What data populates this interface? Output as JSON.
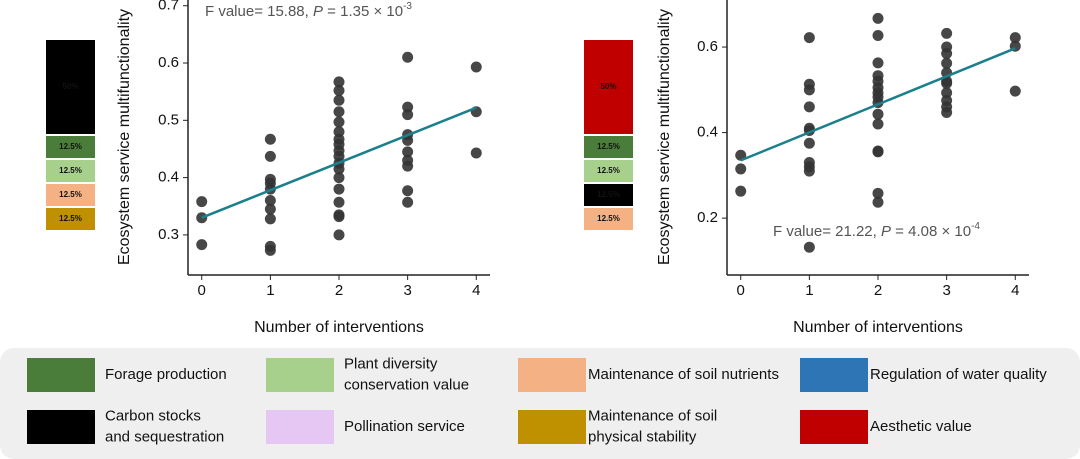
{
  "chart_data": [
    {
      "type": "scatter",
      "color": "#333333",
      "xlabel": "Number of interventions",
      "ylabel": "Ecosystem service multifunctionality",
      "xlim": [
        -0.2,
        4.2
      ],
      "ylim": [
        0.23,
        0.71
      ],
      "xticks": [
        0,
        1,
        2,
        3,
        4
      ],
      "yticks": [
        0.3,
        0.4,
        0.5,
        0.6,
        0.7
      ],
      "annotation": [
        "F value= 15.88, ",
        "P",
        " = 1.35 × 10",
        "-3"
      ],
      "x": [
        0,
        0,
        0,
        1,
        1,
        1,
        1,
        1,
        1,
        1,
        1,
        1,
        1,
        2,
        2,
        2,
        2,
        2,
        2,
        2,
        2,
        2,
        2,
        2,
        2,
        2,
        2,
        2,
        2,
        2,
        2,
        3,
        3,
        3,
        3,
        3,
        3,
        3,
        3,
        3,
        3,
        4,
        4,
        4
      ],
      "values": [
        0.358,
        0.33,
        0.283,
        0.467,
        0.437,
        0.397,
        0.39,
        0.38,
        0.36,
        0.345,
        0.328,
        0.28,
        0.273,
        0.567,
        0.552,
        0.535,
        0.515,
        0.497,
        0.48,
        0.467,
        0.458,
        0.447,
        0.437,
        0.425,
        0.415,
        0.4,
        0.38,
        0.357,
        0.335,
        0.332,
        0.3,
        0.61,
        0.523,
        0.51,
        0.475,
        0.465,
        0.445,
        0.43,
        0.42,
        0.377,
        0.357,
        0.593,
        0.515,
        0.443
      ],
      "fit": {
        "color": "#1b7f8c",
        "x": [
          0,
          4
        ],
        "values": [
          0.33,
          0.522
        ]
      },
      "weights": [
        {
          "color": "#000000",
          "value": 50,
          "value_label": "50%"
        },
        {
          "color": "#4a7c3a",
          "value": 12.5,
          "value_label": "12.5%"
        },
        {
          "color": "#a8d08d",
          "value": 12.5,
          "value_label": "12.5%"
        },
        {
          "color": "#f4b183",
          "value": 12.5,
          "value_label": "12.5%"
        },
        {
          "color": "#bf9000",
          "value": 12.5,
          "value_label": "12.5%"
        }
      ]
    },
    {
      "type": "scatter",
      "color": "#333333",
      "xlabel": "Number of interventions",
      "ylabel": "Ecosystem service multifunctionality",
      "xlim": [
        -0.2,
        4.2
      ],
      "ylim": [
        0.067,
        0.71
      ],
      "xticks": [
        0,
        1,
        2,
        3,
        4
      ],
      "yticks": [
        0.2,
        0.4,
        0.6
      ],
      "annotation": [
        "F value= 21.22, ",
        "P",
        " = 4.08 × 10",
        "-4"
      ],
      "x": [
        0,
        0,
        0,
        1,
        1,
        1,
        1,
        1,
        1,
        1,
        1,
        1,
        1,
        1,
        2,
        2,
        2,
        2,
        2,
        2,
        2,
        2,
        2,
        2,
        2,
        2,
        2,
        2,
        2,
        3,
        3,
        3,
        3,
        3,
        3,
        3,
        3,
        3,
        3,
        3,
        4,
        4,
        4
      ],
      "values": [
        0.347,
        0.315,
        0.263,
        0.622,
        0.513,
        0.5,
        0.46,
        0.41,
        0.405,
        0.375,
        0.33,
        0.32,
        0.31,
        0.132,
        0.667,
        0.627,
        0.563,
        0.533,
        0.52,
        0.505,
        0.493,
        0.483,
        0.47,
        0.443,
        0.42,
        0.357,
        0.355,
        0.258,
        0.237,
        0.632,
        0.6,
        0.585,
        0.562,
        0.54,
        0.52,
        0.515,
        0.493,
        0.475,
        0.46,
        0.447,
        0.622,
        0.602,
        0.497
      ],
      "fit": {
        "color": "#1b7f8c",
        "x": [
          0,
          4
        ],
        "values": [
          0.335,
          0.597
        ]
      },
      "weights": [
        {
          "color": "#c00000",
          "value": 50,
          "value_label": "50%"
        },
        {
          "color": "#4a7c3a",
          "value": 12.5,
          "value_label": "12.5%"
        },
        {
          "color": "#a8d08d",
          "value": 12.5,
          "value_label": "12.5%"
        },
        {
          "color": "#000000",
          "value": 12.5,
          "value_label": "12.5%"
        },
        {
          "color": "#f4b183",
          "value": 12.5,
          "value_label": "12.5%"
        }
      ]
    }
  ],
  "legend": {
    "items": [
      {
        "color": "#4a7c3a",
        "lines": [
          "Forage production"
        ]
      },
      {
        "color": "#a8d08d",
        "lines": [
          "Plant diversity",
          "conservation value"
        ]
      },
      {
        "color": "#f4b183",
        "lines": [
          "Maintenance of soil nutrients"
        ]
      },
      {
        "color": "#2e75b6",
        "lines": [
          "Regulation of water quality"
        ]
      },
      {
        "color": "#000000",
        "lines": [
          "Carbon stocks",
          "and sequestration"
        ]
      },
      {
        "color": "#e6c6f2",
        "lines": [
          "Pollination service"
        ]
      },
      {
        "color": "#bf9000",
        "lines": [
          "Maintenance of soil",
          "physical stability"
        ]
      },
      {
        "color": "#c00000",
        "lines": [
          "Aesthetic value"
        ]
      }
    ]
  }
}
